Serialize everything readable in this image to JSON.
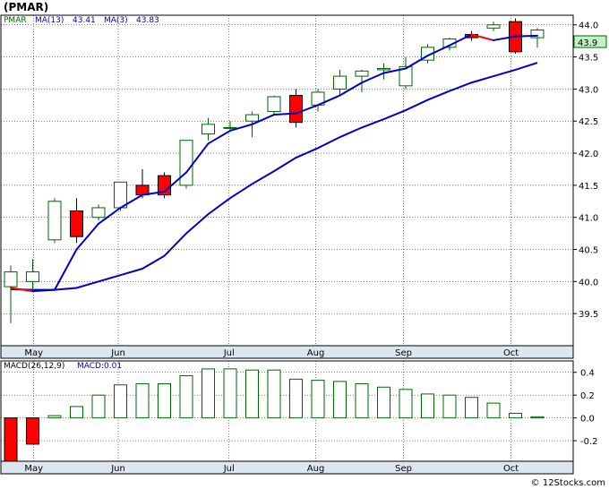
{
  "title": "(PMAR)",
  "footer": "© 12Stocks.com",
  "colors": {
    "up": "#ffffff",
    "up_border": "#006400",
    "down": "#ff0000",
    "ma13": "#0000cc",
    "ma3": "#0000cc",
    "ma3_down": "#ff0000",
    "grid": "#000000",
    "panel_bg": "#dce6f0",
    "macd_bar": "#006400",
    "macd_neg": "#ff0000",
    "price_badge": "#c8f0c8"
  },
  "legend": {
    "symbol": "PMAR",
    "ma13_label": "MA(13)",
    "ma13_value": "43.41",
    "ma3_label": "MA(3)",
    "ma3_value": "43.83",
    "macd_label": "MACD(26,12,9)",
    "macd_value_label": "MACD:0.01",
    "last_price": "43.9"
  },
  "chart_data": [
    {
      "type": "candlestick",
      "x_months": [
        "May",
        "Jun",
        "Jul",
        "Aug",
        "Sep",
        "Oct"
      ],
      "y_ticks": [
        39.5,
        40.0,
        40.5,
        41.0,
        41.5,
        42.0,
        42.5,
        43.0,
        43.5,
        44.0
      ],
      "ylim": [
        39.0,
        44.15
      ],
      "candles": [
        {
          "open": 39.92,
          "close": 40.15,
          "high": 40.25,
          "low": 39.35
        },
        {
          "open": 40.0,
          "close": 40.15,
          "high": 40.35,
          "low": 39.85
        },
        {
          "open": 40.65,
          "close": 41.25,
          "high": 41.3,
          "low": 40.6
        },
        {
          "open": 41.1,
          "close": 40.7,
          "high": 41.3,
          "low": 40.6
        },
        {
          "open": 41.0,
          "close": 41.15,
          "high": 41.2,
          "low": 40.95
        },
        {
          "open": 41.15,
          "close": 41.55,
          "high": 41.55,
          "low": 41.1
        },
        {
          "open": 41.5,
          "close": 41.35,
          "high": 41.75,
          "low": 41.3
        },
        {
          "open": 41.65,
          "close": 41.35,
          "high": 41.7,
          "low": 41.3
        },
        {
          "open": 41.5,
          "close": 42.2,
          "high": 42.2,
          "low": 41.45
        },
        {
          "open": 42.3,
          "close": 42.45,
          "high": 42.55,
          "low": 42.2
        },
        {
          "open": 42.4,
          "close": 42.4,
          "high": 42.5,
          "low": 42.35
        },
        {
          "open": 42.5,
          "close": 42.6,
          "high": 42.65,
          "low": 42.25
        },
        {
          "open": 42.65,
          "close": 42.88,
          "high": 42.9,
          "low": 42.6
        },
        {
          "open": 42.9,
          "close": 42.48,
          "high": 43.0,
          "low": 42.4
        },
        {
          "open": 42.75,
          "close": 42.95,
          "high": 43.0,
          "low": 42.65
        },
        {
          "open": 43.0,
          "close": 43.2,
          "high": 43.3,
          "low": 42.9
        },
        {
          "open": 43.2,
          "close": 43.28,
          "high": 43.3,
          "low": 42.95
        },
        {
          "open": 43.3,
          "close": 43.32,
          "high": 43.4,
          "low": 43.15
        },
        {
          "open": 43.05,
          "close": 43.35,
          "high": 43.5,
          "low": 43.0
        },
        {
          "open": 43.45,
          "close": 43.65,
          "high": 43.7,
          "low": 43.4
        },
        {
          "open": 43.65,
          "close": 43.78,
          "high": 43.8,
          "low": 43.6
        },
        {
          "open": 43.85,
          "close": 43.8,
          "high": 43.9,
          "low": 43.75
        },
        {
          "open": 43.95,
          "close": 44.0,
          "high": 44.05,
          "low": 43.9
        },
        {
          "open": 44.05,
          "close": 43.58,
          "high": 44.1,
          "low": 43.55
        },
        {
          "open": 43.8,
          "close": 43.92,
          "high": 43.95,
          "low": 43.65
        }
      ],
      "ma3": [
        39.9,
        39.85,
        39.87,
        40.5,
        40.9,
        41.15,
        41.35,
        41.4,
        41.7,
        42.15,
        42.35,
        42.45,
        42.6,
        42.62,
        42.75,
        42.9,
        43.1,
        43.25,
        43.32,
        43.52,
        43.68,
        43.85,
        43.76,
        43.82,
        43.83
      ],
      "ma13": [
        39.88,
        39.87,
        39.87,
        39.9,
        40.0,
        40.1,
        40.2,
        40.4,
        40.75,
        41.05,
        41.3,
        41.52,
        41.72,
        41.93,
        42.08,
        42.25,
        42.4,
        42.53,
        42.67,
        42.83,
        42.97,
        43.1,
        43.2,
        43.3,
        43.41
      ]
    },
    {
      "type": "bar",
      "y_ticks": [
        -0.2,
        0.0,
        0.2,
        0.4
      ],
      "ylim": [
        -0.38,
        0.5
      ],
      "values": [
        -0.38,
        -0.23,
        0.02,
        0.1,
        0.2,
        0.29,
        0.3,
        0.3,
        0.37,
        0.43,
        0.43,
        0.42,
        0.42,
        0.34,
        0.33,
        0.32,
        0.3,
        0.27,
        0.25,
        0.21,
        0.2,
        0.18,
        0.13,
        0.04,
        0.01
      ]
    }
  ]
}
